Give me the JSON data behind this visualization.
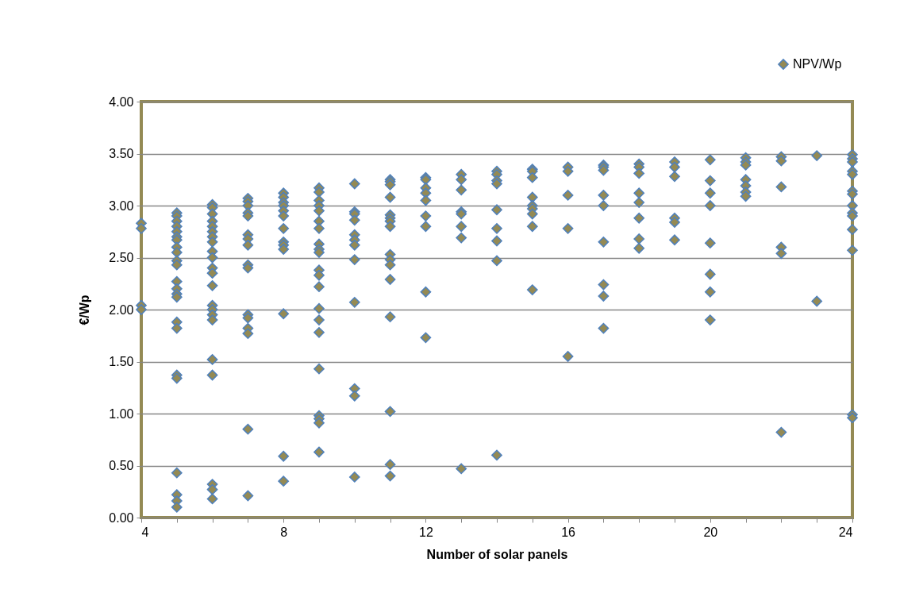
{
  "chart_data": {
    "type": "scatter",
    "xlabel": "Number of solar panels",
    "ylabel": "€/Wp",
    "marker": "diamond",
    "grid": "y",
    "legend": "top right",
    "xlim": [
      4,
      24
    ],
    "xticks": [
      4,
      {
        "value": 5,
        "label": null
      },
      {
        "value": 6,
        "label": null
      },
      {
        "value": 7,
        "label": null
      },
      8,
      {
        "value": 9,
        "label": null
      },
      {
        "value": 10,
        "label": null
      },
      {
        "value": 11,
        "label": null
      },
      12,
      {
        "value": 13,
        "label": null
      },
      {
        "value": 14,
        "label": null
      },
      {
        "value": 15,
        "label": null
      },
      16,
      {
        "value": 17,
        "label": null
      },
      {
        "value": 18,
        "label": null
      },
      {
        "value": 19,
        "label": null
      },
      20,
      {
        "value": 21,
        "label": null
      },
      {
        "value": 22,
        "label": null
      },
      {
        "value": 23,
        "label": null
      },
      24
    ],
    "ylim": [
      0,
      4
    ],
    "yticks": [
      {
        "value": 0,
        "label": "0.00"
      },
      {
        "value": 0.5,
        "label": "0.50"
      },
      {
        "value": 1,
        "label": "1.00"
      },
      {
        "value": 1.5,
        "label": "1.50"
      },
      {
        "value": 2,
        "label": "2.00"
      },
      {
        "value": 2.5,
        "label": "2.50"
      },
      {
        "value": 3,
        "label": "3.00"
      },
      {
        "value": 3.5,
        "label": "3.50"
      },
      {
        "value": 4,
        "label": "4.00"
      }
    ],
    "series": [
      {
        "name": "NPV/Wp",
        "color": "#948a54",
        "x": [
          4,
          4,
          4,
          4,
          5,
          5,
          5,
          5,
          5,
          5,
          5,
          5,
          5,
          5,
          5,
          5,
          5,
          5,
          5,
          5,
          5,
          5,
          5,
          5,
          5,
          5,
          5,
          6,
          6,
          6,
          6,
          6,
          6,
          6,
          6,
          6,
          6,
          6,
          6,
          6,
          6,
          6,
          6,
          6,
          6,
          6,
          6,
          6,
          6,
          7,
          7,
          7,
          7,
          7,
          7,
          7,
          7,
          7,
          7,
          7,
          7,
          7,
          7,
          7,
          7,
          8,
          8,
          8,
          8,
          8,
          8,
          8,
          8,
          8,
          8,
          8,
          8,
          8,
          9,
          9,
          9,
          9,
          9,
          9,
          9,
          9,
          9,
          9,
          9,
          9,
          9,
          9,
          9,
          9,
          9,
          9,
          9,
          9,
          9,
          10,
          10,
          10,
          10,
          10,
          10,
          10,
          10,
          10,
          10,
          10,
          10,
          11,
          11,
          11,
          11,
          11,
          11,
          11,
          11,
          11,
          11,
          11,
          11,
          11,
          11,
          11,
          11,
          12,
          12,
          12,
          12,
          12,
          12,
          12,
          12,
          12,
          13,
          13,
          13,
          13,
          13,
          13,
          13,
          13,
          14,
          14,
          14,
          14,
          14,
          14,
          14,
          14,
          14,
          15,
          15,
          15,
          15,
          15,
          15,
          15,
          15,
          15,
          16,
          16,
          16,
          16,
          16,
          17,
          17,
          17,
          17,
          17,
          17,
          17,
          17,
          17,
          18,
          18,
          18,
          18,
          18,
          18,
          18,
          18,
          19,
          19,
          19,
          19,
          19,
          19,
          20,
          20,
          20,
          20,
          20,
          20,
          20,
          20,
          21,
          21,
          21,
          21,
          21,
          21,
          21,
          22,
          22,
          22,
          22,
          22,
          22,
          23,
          23,
          24,
          24,
          24,
          24,
          24,
          24,
          24,
          24,
          24,
          24,
          24,
          24,
          24,
          24
        ],
        "values": [
          2.83,
          2.78,
          2.04,
          2.0,
          2.93,
          2.9,
          2.85,
          2.8,
          2.75,
          2.7,
          2.67,
          2.6,
          2.55,
          2.47,
          2.43,
          2.27,
          2.2,
          2.15,
          2.12,
          1.88,
          1.82,
          1.37,
          1.34,
          0.43,
          0.22,
          0.16,
          0.1,
          3.01,
          2.98,
          2.92,
          2.85,
          2.8,
          2.75,
          2.7,
          2.65,
          2.56,
          2.5,
          2.4,
          2.35,
          2.23,
          2.04,
          2.0,
          1.95,
          1.9,
          1.52,
          1.37,
          0.32,
          0.27,
          0.18,
          3.07,
          3.04,
          3.0,
          2.93,
          2.9,
          2.72,
          2.68,
          2.62,
          2.43,
          2.4,
          1.95,
          1.92,
          1.82,
          1.77,
          0.85,
          0.21,
          3.12,
          3.08,
          3.03,
          3.0,
          2.95,
          2.9,
          2.78,
          2.65,
          2.62,
          2.58,
          1.96,
          0.59,
          0.35,
          3.17,
          3.13,
          3.05,
          3.0,
          2.95,
          2.85,
          2.78,
          2.63,
          2.58,
          2.55,
          2.38,
          2.33,
          2.22,
          2.01,
          1.9,
          1.78,
          1.43,
          0.98,
          0.95,
          0.91,
          0.63,
          3.21,
          2.94,
          2.92,
          2.86,
          2.72,
          2.67,
          2.62,
          2.48,
          2.07,
          1.24,
          1.17,
          0.39,
          3.25,
          3.23,
          3.2,
          3.08,
          2.91,
          2.88,
          2.85,
          2.8,
          2.53,
          2.48,
          2.43,
          2.29,
          1.93,
          1.02,
          0.51,
          0.4,
          3.27,
          3.25,
          3.17,
          3.12,
          3.05,
          2.9,
          2.8,
          2.17,
          1.73,
          3.3,
          3.25,
          3.15,
          2.94,
          2.92,
          2.8,
          2.69,
          0.47,
          3.33,
          3.3,
          3.24,
          3.21,
          2.96,
          2.78,
          2.66,
          2.47,
          0.6,
          3.35,
          3.33,
          3.27,
          3.08,
          3.0,
          2.97,
          2.92,
          2.8,
          2.19,
          3.37,
          3.33,
          3.1,
          2.78,
          1.55,
          3.39,
          3.37,
          3.34,
          3.1,
          3.0,
          2.65,
          2.24,
          2.13,
          1.82,
          3.4,
          3.37,
          3.31,
          3.12,
          3.03,
          2.88,
          2.68,
          2.59,
          3.42,
          3.37,
          3.28,
          2.88,
          2.84,
          2.67,
          3.44,
          3.24,
          3.12,
          3.0,
          2.64,
          2.34,
          2.17,
          1.9,
          3.46,
          3.42,
          3.39,
          3.25,
          3.19,
          3.13,
          3.09,
          3.47,
          3.43,
          3.18,
          2.6,
          2.54,
          0.82,
          3.48,
          2.08,
          3.49,
          3.45,
          3.42,
          3.33,
          3.3,
          3.14,
          3.11,
          3.0,
          2.93,
          2.9,
          2.77,
          2.57,
          0.99,
          0.96
        ]
      }
    ]
  }
}
